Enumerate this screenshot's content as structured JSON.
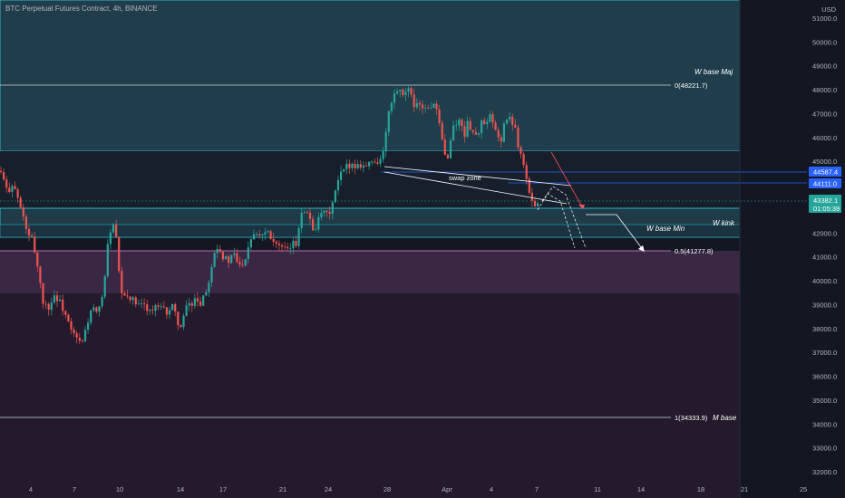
{
  "header": {
    "title": "BTC Perpetual Futures Contract, 4h, BINANCE",
    "currency": "USD"
  },
  "colors": {
    "background": "#131722",
    "candle_up": "#26a69a",
    "candle_down": "#ef5350",
    "zone_teal": "#1f3d4a",
    "zone_purple": "#3a2743",
    "zone_dark_purple": "#241a2c",
    "price_tag_blue": "#2962ff",
    "price_tag_current": "#26a69a"
  },
  "annotations": {
    "w_base_maj": "W base Maj",
    "w_base_min": "W base Min",
    "w_kink": "W kink",
    "m_base": "M base",
    "swap_zone": "swap zone",
    "fib_0": "0(48221.7)",
    "fib_05": "0.5(41277.8)",
    "fib_1": "1(34333.9)"
  },
  "price_tags": {
    "level_a": "44587.4",
    "level_b": "44111.0",
    "current_price": "43382.1",
    "countdown": "01:05:39"
  },
  "chart_data": {
    "type": "candlestick",
    "symbol": "BTC Perpetual Futures Contract",
    "interval": "4h",
    "exchange": "BINANCE",
    "y_range": [
      31800,
      51700
    ],
    "y_ticks": [
      "51000.0",
      "50000.0",
      "49000.0",
      "48000.0",
      "47000.0",
      "46000.0",
      "45000.0",
      "44000.0",
      "43000.0",
      "42000.0",
      "41000.0",
      "40000.0",
      "39000.0",
      "38000.0",
      "37000.0",
      "36000.0",
      "35000.0",
      "34000.0",
      "33000.0",
      "32000.0"
    ],
    "x_ticks": [
      "4",
      "7",
      "10",
      "14",
      "17",
      "21",
      "24",
      "28",
      "Apr",
      "4",
      "7",
      "11",
      "14",
      "18",
      "21",
      "25"
    ],
    "levels": {
      "fib_0": 48221.7,
      "fib_05": 41277.8,
      "fib_1": 34333.9,
      "tag_a": 44587.4,
      "tag_b": 44111.0,
      "current": 43382.1
    },
    "price_path": [
      [
        0,
        44600
      ],
      [
        4,
        44200
      ],
      [
        8,
        43700
      ],
      [
        14,
        44100
      ],
      [
        20,
        43400
      ],
      [
        26,
        42600
      ],
      [
        32,
        41800
      ],
      [
        36,
        41700
      ],
      [
        40,
        40900
      ],
      [
        44,
        40000
      ],
      [
        48,
        39000
      ],
      [
        54,
        38900
      ],
      [
        60,
        39400
      ],
      [
        66,
        39100
      ],
      [
        72,
        38600
      ],
      [
        78,
        37900
      ],
      [
        84,
        37600
      ],
      [
        90,
        37300
      ],
      [
        96,
        38200
      ],
      [
        102,
        38900
      ],
      [
        108,
        38500
      ],
      [
        112,
        39300
      ],
      [
        116,
        40300
      ],
      [
        120,
        41900
      ],
      [
        124,
        42400
      ],
      [
        128,
        41800
      ],
      [
        132,
        39900
      ],
      [
        136,
        39200
      ],
      [
        142,
        39400
      ],
      [
        148,
        39100
      ],
      [
        154,
        38900
      ],
      [
        160,
        39000
      ],
      [
        166,
        38700
      ],
      [
        172,
        38900
      ],
      [
        178,
        38800
      ],
      [
        184,
        38700
      ],
      [
        190,
        38900
      ],
      [
        196,
        38300
      ],
      [
        200,
        38000
      ],
      [
        204,
        38700
      ],
      [
        208,
        39100
      ],
      [
        212,
        38900
      ],
      [
        216,
        39500
      ],
      [
        220,
        38900
      ],
      [
        224,
        39400
      ],
      [
        228,
        39600
      ],
      [
        232,
        40400
      ],
      [
        236,
        41200
      ],
      [
        240,
        41500
      ],
      [
        246,
        41000
      ],
      [
        252,
        40800
      ],
      [
        258,
        41100
      ],
      [
        264,
        40600
      ],
      [
        270,
        40900
      ],
      [
        276,
        41800
      ],
      [
        282,
        42100
      ],
      [
        288,
        41900
      ],
      [
        294,
        42200
      ],
      [
        300,
        41800
      ],
      [
        306,
        41500
      ],
      [
        312,
        41300
      ],
      [
        318,
        41200
      ],
      [
        322,
        41600
      ],
      [
        326,
        41400
      ],
      [
        330,
        42400
      ],
      [
        334,
        43200
      ],
      [
        338,
        42800
      ],
      [
        342,
        42600
      ],
      [
        346,
        42100
      ],
      [
        350,
        42400
      ],
      [
        356,
        42900
      ],
      [
        362,
        42700
      ],
      [
        368,
        43400
      ],
      [
        374,
        44300
      ],
      [
        380,
        44700
      ],
      [
        386,
        44900
      ],
      [
        392,
        44800
      ],
      [
        398,
        44900
      ],
      [
        404,
        44800
      ],
      [
        410,
        45000
      ],
      [
        416,
        45000
      ],
      [
        420,
        45100
      ],
      [
        424,
        45500
      ],
      [
        428,
        47000
      ],
      [
        432,
        47400
      ],
      [
        436,
        47900
      ],
      [
        440,
        48000
      ],
      [
        444,
        47600
      ],
      [
        448,
        48000
      ],
      [
        452,
        47900
      ],
      [
        456,
        47300
      ],
      [
        460,
        47600
      ],
      [
        464,
        47200
      ],
      [
        468,
        47400
      ],
      [
        472,
        47100
      ],
      [
        476,
        47400
      ],
      [
        480,
        47300
      ],
      [
        484,
        46600
      ],
      [
        488,
        45800
      ],
      [
        492,
        45000
      ],
      [
        496,
        45600
      ],
      [
        500,
        46500
      ],
      [
        504,
        46600
      ],
      [
        508,
        46700
      ],
      [
        512,
        46100
      ],
      [
        516,
        46600
      ],
      [
        520,
        46400
      ],
      [
        524,
        46000
      ],
      [
        528,
        46300
      ],
      [
        532,
        46700
      ],
      [
        536,
        46400
      ],
      [
        540,
        46900
      ],
      [
        544,
        46500
      ],
      [
        548,
        46100
      ],
      [
        552,
        45800
      ],
      [
        556,
        46600
      ],
      [
        560,
        46800
      ],
      [
        564,
        46700
      ],
      [
        568,
        46500
      ],
      [
        572,
        45600
      ],
      [
        576,
        45200
      ],
      [
        580,
        44400
      ],
      [
        584,
        43600
      ],
      [
        588,
        43100
      ],
      [
        592,
        43400
      ],
      [
        596,
        43300
      ]
    ]
  }
}
